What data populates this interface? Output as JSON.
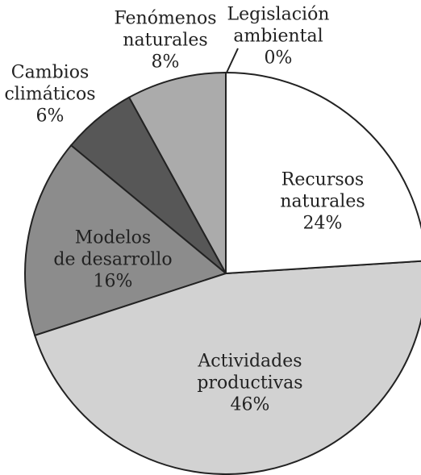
{
  "chart_data": {
    "type": "pie",
    "categories": [
      "Recursos\nnaturales",
      "Actividades\nproductivas",
      "Modelos\nde desarrollo",
      "Cambios\nclimáticos",
      "Fenómenos\nnaturales",
      "Legislación\nambiental"
    ],
    "values": [
      24,
      46,
      16,
      6,
      8,
      0
    ],
    "value_labels": [
      "24%",
      "46%",
      "16%",
      "6%",
      "8%",
      "0%"
    ],
    "colors": [
      "#ffffff",
      "#d2d2d2",
      "#8c8c8c",
      "#575757",
      "#ababab",
      "#ffffff"
    ]
  }
}
